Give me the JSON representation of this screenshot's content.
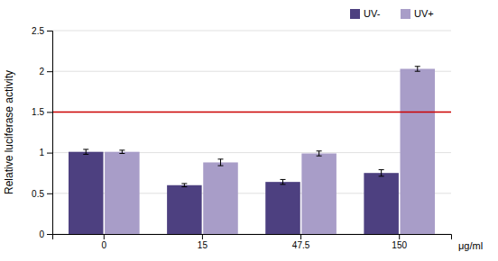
{
  "chart_data": {
    "type": "bar",
    "categories": [
      "0",
      "15",
      "47.5",
      "150"
    ],
    "series": [
      {
        "name": "UV-",
        "color": "#4d4080",
        "values": [
          1.01,
          0.6,
          0.64,
          0.75
        ],
        "errors": [
          0.03,
          0.02,
          0.03,
          0.04
        ]
      },
      {
        "name": "UV+",
        "color": "#a89dc8",
        "values": [
          1.01,
          0.88,
          0.99,
          2.03
        ],
        "errors": [
          0.02,
          0.04,
          0.03,
          0.03
        ]
      }
    ],
    "ylabel": "Relative luciferase activity",
    "xlabel": "μg/ml",
    "ylim": [
      0,
      2.5
    ],
    "yticks": [
      0,
      0.5,
      1,
      1.5,
      2,
      2.5
    ],
    "grid": true,
    "legend": "upper right",
    "reference_line": {
      "y": 1.5,
      "color": "#cc0000"
    }
  }
}
